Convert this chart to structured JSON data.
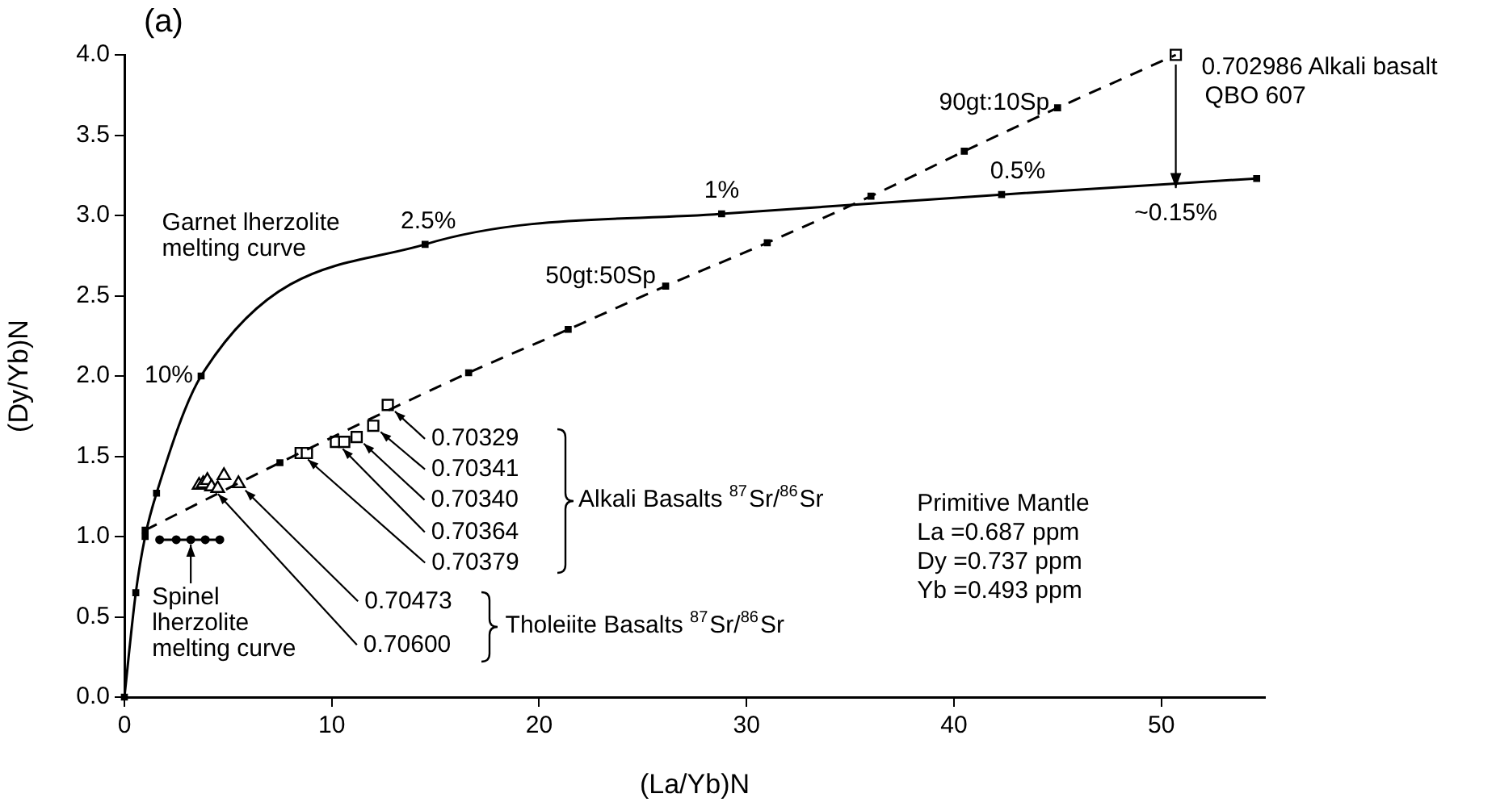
{
  "chart_data": {
    "type": "line",
    "title": "(a)",
    "xlabel": "(La/Yb)N",
    "ylabel": "(Dy/Yb)N",
    "xlim": [
      0,
      55
    ],
    "xticks": [
      0,
      10,
      20,
      30,
      40,
      50
    ],
    "ylim": [
      0,
      4
    ],
    "yticks": [
      {
        "value": 0,
        "label": "0.0"
      },
      0.5,
      {
        "value": 1,
        "label": "1.0"
      },
      1.5,
      {
        "value": 2,
        "label": "2.0"
      },
      2.5,
      {
        "value": 3,
        "label": "3.0"
      },
      3.5,
      {
        "value": 4,
        "label": "4.0"
      }
    ],
    "grid": false,
    "series": [
      {
        "color": "#000000",
        "marker": "square",
        "line_style": "solid",
        "x": [
          0,
          0.55,
          1.0,
          1.55,
          3.7,
          14.5,
          28.8,
          42.3,
          54.6
        ],
        "values": [
          0,
          0.65,
          1.0,
          1.27,
          2.0,
          2.82,
          3.01,
          3.13,
          3.23
        ]
      },
      {
        "color": "#000000",
        "marker": "square",
        "line_style": "dashed",
        "x": [
          1.0,
          7.5,
          16.6,
          21.4,
          26.1,
          31,
          36,
          40.5,
          45,
          50.7
        ],
        "values": [
          1.04,
          1.46,
          2.02,
          2.29,
          2.56,
          2.83,
          3.12,
          3.4,
          3.67,
          4.0
        ]
      },
      {
        "color": "#000000",
        "marker": "circle",
        "line_style": "solid",
        "x": [
          1.7,
          2.5,
          3.2,
          3.9,
          4.6
        ],
        "values": [
          0.98,
          0.98,
          0.98,
          0.98,
          0.98
        ]
      },
      {
        "type": "scatter",
        "color": "#000000",
        "marker": "square",
        "x": [
          12.7,
          12.0,
          11.2,
          10.2,
          10.6,
          8.5,
          8.8,
          50.7
        ],
        "values": [
          1.82,
          1.69,
          1.62,
          1.59,
          1.59,
          1.52,
          1.52,
          4.0
        ]
      },
      {
        "type": "scatter",
        "color": "#000000",
        "marker": "triangle",
        "x": [
          3.6,
          3.8,
          4.0,
          4.2,
          4.5,
          4.8,
          5.5
        ],
        "values": [
          1.32,
          1.33,
          1.35,
          1.31,
          1.3,
          1.38,
          1.33
        ]
      }
    ],
    "annotations": [
      {
        "text": "10%",
        "x": 3.7,
        "y": 2.0
      },
      {
        "text": "2.5%",
        "x": 14.5,
        "y": 2.82
      },
      {
        "text": "1%",
        "x": 28.8,
        "y": 3.01
      },
      {
        "text": "0.5%",
        "x": 42.3,
        "y": 3.13
      },
      {
        "text": "~0.15%",
        "x": 50.7,
        "y": 3.17
      },
      {
        "text": "50gt:50Sp",
        "x": 26.1,
        "y": 2.56
      },
      {
        "text": "90gt:10Sp",
        "x": 45,
        "y": 3.67
      },
      {
        "text": "0.702986 Alkali basalt\nQBO 607",
        "x": 50.7,
        "y": 4.0
      },
      {
        "text": "0.70329",
        "x": 12.7,
        "y": 1.82
      },
      {
        "text": "0.70341",
        "x": 12.0,
        "y": 1.69
      },
      {
        "text": "0.70340",
        "x": 11.2,
        "y": 1.62
      },
      {
        "text": "0.70364",
        "x": 10.2,
        "y": 1.59
      },
      {
        "text": "0.70379",
        "x": 8.5,
        "y": 1.52
      },
      {
        "text": "0.70473",
        "x": 5.5,
        "y": 1.33
      },
      {
        "text": "0.70600",
        "x": 4.2,
        "y": 1.31
      },
      "Alkali Basalts $^{87}$Sr/$^{86}$Sr",
      "Tholeiite Basalts $^{87}$Sr/$^{86}$Sr",
      "Primitive Mantle\nLa =0.687 ppm\nDy =0.737 ppm\nYb =0.493 ppm",
      "Garnet lherzolite\nmelting curve",
      {
        "text": "Spinel\nlherzolite\nmelting curve",
        "x": 3.2,
        "y": 0.98
      }
    ]
  }
}
